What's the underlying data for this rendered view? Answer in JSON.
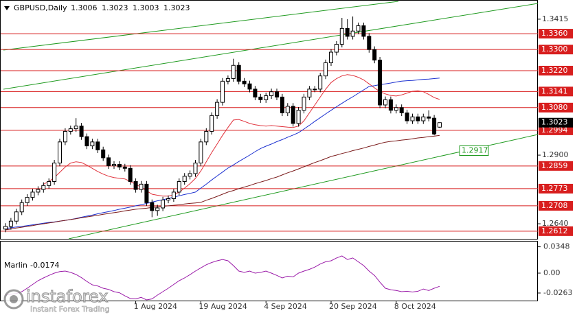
{
  "chart_data": [
    {
      "type": "candlestick",
      "title": "GBPUSD,Daily",
      "categories": [
        null,
        null,
        null,
        null,
        null,
        null,
        null,
        null,
        null,
        null,
        null,
        null,
        null,
        null,
        null,
        null,
        null,
        null,
        null,
        null,
        null,
        null,
        null,
        null,
        "1 Aug 2024",
        null,
        null,
        null,
        null,
        null,
        null,
        null,
        null,
        null,
        null,
        null,
        "19 Aug 2024",
        null,
        null,
        null,
        null,
        null,
        null,
        null,
        null,
        null,
        null,
        null,
        "4 Sep 2024",
        null,
        null,
        null,
        null,
        null,
        null,
        null,
        null,
        null,
        null,
        null,
        "20 Sep 2024",
        null,
        null,
        null,
        null,
        null,
        null,
        null,
        null,
        null,
        null,
        null,
        "8 Oct 2024",
        null,
        null,
        null,
        null,
        null,
        null,
        null,
        null
      ],
      "open": [
        1.262,
        1.263,
        1.265,
        1.2685,
        1.272,
        1.274,
        1.276,
        1.277,
        1.2785,
        1.28,
        1.287,
        1.295,
        1.299,
        1.3,
        1.301,
        1.297,
        1.2935,
        1.295,
        1.292,
        1.289,
        1.286,
        1.2865,
        1.2855,
        1.285,
        1.28,
        1.277,
        1.279,
        1.272,
        1.269,
        1.27,
        1.273,
        1.2735,
        1.276,
        1.28,
        1.282,
        1.283,
        1.287,
        1.295,
        1.299,
        1.305,
        1.31,
        1.318,
        1.319,
        1.324,
        1.318,
        1.317,
        1.315,
        1.312,
        1.311,
        1.3125,
        1.314,
        1.312,
        1.306,
        1.3085,
        1.302,
        1.307,
        1.312,
        1.315,
        1.315,
        1.32,
        1.325,
        1.329,
        1.332,
        1.338,
        1.335,
        1.337,
        1.339,
        1.335,
        1.33,
        1.326,
        1.309,
        1.311,
        1.307,
        1.308,
        1.306,
        1.303,
        1.3045,
        1.303,
        1.3045,
        1.304,
        1.3006
      ],
      "high": [
        1.2642,
        1.2662,
        1.2697,
        1.2732,
        1.2752,
        1.2772,
        1.2782,
        1.2797,
        1.2812,
        1.2882,
        1.2962,
        1.3002,
        1.3012,
        1.304,
        1.3022,
        1.2982,
        1.2962,
        1.2962,
        1.2932,
        1.2902,
        1.2877,
        1.2877,
        1.2867,
        1.2862,
        1.2812,
        1.2802,
        1.2802,
        1.2732,
        1.2712,
        1.2742,
        1.2747,
        1.2772,
        1.2812,
        1.2832,
        1.2842,
        1.2882,
        1.2962,
        1.3002,
        1.3062,
        1.3112,
        1.3192,
        1.3202,
        1.3265,
        1.3252,
        1.3192,
        1.3182,
        1.3162,
        1.3132,
        1.3137,
        1.3152,
        1.3152,
        1.3132,
        1.3097,
        1.3097,
        1.3082,
        1.3132,
        1.3162,
        1.3162,
        1.3212,
        1.3262,
        1.3302,
        1.3332,
        1.342,
        1.3415,
        1.3425,
        1.3402,
        1.3402,
        1.3362,
        1.3312,
        1.3272,
        1.3122,
        1.3122,
        1.3092,
        1.3092,
        1.3072,
        1.3057,
        1.3057,
        1.3057,
        1.307,
        1.3052,
        1.3023
      ],
      "low": [
        1.2608,
        1.2618,
        1.2638,
        1.2673,
        1.2708,
        1.2728,
        1.2748,
        1.2758,
        1.2773,
        1.2788,
        1.2858,
        1.2938,
        1.2978,
        1.2988,
        1.2958,
        1.2923,
        1.2923,
        1.2908,
        1.2878,
        1.2848,
        1.2848,
        1.2843,
        1.2838,
        1.2788,
        1.2758,
        1.2758,
        1.2708,
        1.2665,
        1.267,
        1.2688,
        1.2718,
        1.2723,
        1.2748,
        1.2788,
        1.2808,
        1.2818,
        1.2858,
        1.2938,
        1.2978,
        1.3038,
        1.3088,
        1.3168,
        1.3178,
        1.3168,
        1.3158,
        1.3138,
        1.3108,
        1.3098,
        1.3098,
        1.3113,
        1.3108,
        1.3048,
        1.3048,
        1.3008,
        1.3008,
        1.3058,
        1.3108,
        1.3138,
        1.3138,
        1.3188,
        1.3238,
        1.3278,
        1.3308,
        1.3338,
        1.3338,
        1.3358,
        1.3338,
        1.3288,
        1.3248,
        1.3078,
        1.3078,
        1.3058,
        1.3058,
        1.3048,
        1.3018,
        1.3018,
        1.3018,
        1.3018,
        1.3028,
        1.2975,
        1.3003
      ],
      "close": [
        1.263,
        1.265,
        1.2685,
        1.272,
        1.274,
        1.276,
        1.277,
        1.2785,
        1.28,
        1.287,
        1.295,
        1.299,
        1.3,
        1.301,
        1.297,
        1.2935,
        1.295,
        1.292,
        1.289,
        1.286,
        1.2865,
        1.2855,
        1.285,
        1.28,
        1.277,
        1.279,
        1.272,
        1.269,
        1.27,
        1.273,
        1.2735,
        1.276,
        1.28,
        1.282,
        1.283,
        1.287,
        1.295,
        1.299,
        1.305,
        1.31,
        1.318,
        1.319,
        1.324,
        1.318,
        1.317,
        1.315,
        1.312,
        1.311,
        1.3125,
        1.314,
        1.312,
        1.306,
        1.3085,
        1.302,
        1.307,
        1.312,
        1.315,
        1.315,
        1.32,
        1.325,
        1.329,
        1.332,
        1.338,
        1.335,
        1.337,
        1.339,
        1.335,
        1.33,
        1.326,
        1.309,
        1.311,
        1.307,
        1.308,
        1.306,
        1.303,
        1.3045,
        1.303,
        1.3045,
        1.304,
        1.298,
        1.3023
      ],
      "up_color": "#ffffff",
      "down_color": "#000000",
      "edge_color": "#000000",
      "lines": [
        {
          "color": "#e0303a",
          "values": [
            null,
            null,
            null,
            null,
            null,
            null,
            null,
            1.279,
            1.28,
            1.2815,
            1.2835,
            1.2855,
            1.287,
            1.2875,
            1.2872,
            1.2862,
            1.285,
            1.2838,
            1.2828,
            1.282,
            1.2815,
            1.2812,
            1.281,
            1.28,
            1.279,
            1.2778,
            1.2765,
            1.2752,
            1.2748,
            1.2745,
            1.2745,
            1.275,
            1.276,
            1.2775,
            1.2792,
            1.2812,
            1.284,
            1.2875,
            1.291,
            1.2942,
            1.2975,
            1.3005,
            1.3033,
            1.3035,
            1.3028,
            1.302,
            1.3015,
            1.3012,
            1.301,
            1.3012,
            1.301,
            1.3008,
            1.3006,
            1.3005,
            1.301,
            1.303,
            1.306,
            1.309,
            1.312,
            1.315,
            1.3175,
            1.319,
            1.32,
            1.3205,
            1.3202,
            1.3195,
            1.3185,
            1.317,
            1.3155,
            1.314,
            1.3132,
            1.3126,
            1.3124,
            1.3128,
            1.3135,
            1.3142,
            1.3144,
            1.314,
            1.313,
            1.3118,
            1.3111
          ]
        },
        {
          "color": "#1a2fd0",
          "values": [
            1.2622,
            1.2625,
            1.2628,
            1.263,
            1.2633,
            1.2636,
            1.2639,
            1.2642,
            1.2645,
            1.2647,
            1.265,
            1.2653,
            1.2656,
            1.266,
            1.2665,
            1.2669,
            1.2673,
            1.2678,
            1.2682,
            1.2686,
            1.269,
            1.2695,
            1.2699,
            1.2703,
            1.2708,
            1.2712,
            1.2717,
            1.2722,
            1.2727,
            1.2731,
            1.2736,
            1.2741,
            1.2746,
            1.2751,
            1.2755,
            1.276,
            1.2775,
            1.279,
            1.2806,
            1.2821,
            1.2836,
            1.2851,
            1.2863,
            1.2876,
            1.2888,
            1.29,
            1.2913,
            1.2925,
            1.2934,
            1.2942,
            1.2951,
            1.2959,
            1.2968,
            1.2976,
            1.2985,
            1.2999,
            1.3013,
            1.3028,
            1.3042,
            1.3056,
            1.307,
            1.3083,
            1.3096,
            1.3109,
            1.3121,
            1.3134,
            1.3147,
            1.316,
            1.3163,
            1.3167,
            1.317,
            1.3173,
            1.3177,
            1.318,
            1.3182,
            1.3183,
            1.3185,
            1.3187,
            1.3188,
            1.319,
            1.3192
          ]
        },
        {
          "color": "#7a1a1a",
          "values": [
            1.2617,
            1.262,
            1.2624,
            1.2627,
            1.263,
            1.2633,
            1.2637,
            1.264,
            1.2643,
            1.2646,
            1.265,
            1.2653,
            1.2656,
            1.2659,
            1.2663,
            1.2666,
            1.2669,
            1.2672,
            1.2676,
            1.2679,
            1.2682,
            1.2685,
            1.2689,
            1.2692,
            1.2695,
            1.2697,
            1.2699,
            1.2702,
            1.2704,
            1.2706,
            1.2708,
            1.271,
            1.2712,
            1.2715,
            1.2717,
            1.2719,
            1.2721,
            1.2729,
            1.2736,
            1.2744,
            1.2752,
            1.276,
            1.2766,
            1.2773,
            1.2779,
            1.2785,
            1.2792,
            1.2798,
            1.2804,
            1.2811,
            1.2817,
            1.2825,
            1.2833,
            1.284,
            1.2848,
            1.2856,
            1.2864,
            1.2872,
            1.2879,
            1.2887,
            1.2895,
            1.29,
            1.2906,
            1.2911,
            1.2917,
            1.2922,
            1.2927,
            1.2933,
            1.2938,
            1.2944,
            1.2949,
            1.2952,
            1.2954,
            1.2957,
            1.2959,
            1.2962,
            1.2965,
            1.2967,
            1.297,
            1.2972,
            1.2975
          ]
        }
      ],
      "levels": [
        {
          "value": 1.336,
          "label": "1.3360"
        },
        {
          "value": 1.33,
          "label": "1.3300"
        },
        {
          "value": 1.322,
          "label": "1.3220"
        },
        1.3141,
        {
          "value": 1.308,
          "label": "1.3080"
        },
        1.2994,
        1.2859,
        1.2773,
        1.2708,
        1.2612
      ],
      "level_color": "#d81e1e",
      "trendline_label": 1.2917,
      "trendline_color": "#1f9a1f",
      "ylim": [
        1.2583,
        1.3472
      ],
      "yticks": [
        1.3415,
        {
          "value": 1.29,
          "label": "1.2900"
        },
        {
          "value": 1.264,
          "label": "1.2640"
        }
      ]
    },
    {
      "type": "line",
      "title": "Marlin",
      "series": [
        {
          "color": "#9a1aa8",
          "values": [
            -0.029,
            -0.028,
            -0.027,
            -0.0245,
            -0.02,
            -0.015,
            -0.01,
            -0.0064,
            -0.003,
            0.0,
            0.002,
            0.0027,
            0.001,
            -0.0018,
            -0.006,
            -0.011,
            -0.0154,
            -0.017,
            -0.02,
            -0.0215,
            -0.0245,
            -0.026,
            -0.03,
            -0.0336,
            -0.034,
            -0.032,
            -0.0354,
            -0.034,
            -0.029,
            -0.0245,
            -0.02,
            -0.015,
            -0.01,
            -0.0064,
            -0.002,
            0.0027,
            0.007,
            0.011,
            0.014,
            0.0163,
            0.018,
            0.0163,
            0.01,
            0.0027,
            0.001,
            0.0027,
            0.0,
            0.001,
            0.0027,
            0.0,
            -0.003,
            -0.0064,
            -0.004,
            -0.005,
            0.0,
            0.0027,
            0.005,
            0.008,
            0.012,
            0.015,
            0.0163,
            0.02,
            0.0227,
            0.018,
            0.02,
            0.015,
            0.01,
            0.0027,
            -0.003,
            -0.012,
            -0.02,
            -0.022,
            -0.023,
            -0.0245,
            -0.024,
            -0.025,
            -0.024,
            -0.021,
            -0.023,
            -0.02,
            -0.0174
          ]
        }
      ],
      "ylim": [
        -0.0363,
        0.0417
      ],
      "yticks": [
        0.0348,
        {
          "value": 0,
          "label": "0.00"
        },
        -0.0263
      ]
    }
  ],
  "watermark": {
    "brand": "instaforex",
    "tagline": "Instant Forex Trading"
  }
}
